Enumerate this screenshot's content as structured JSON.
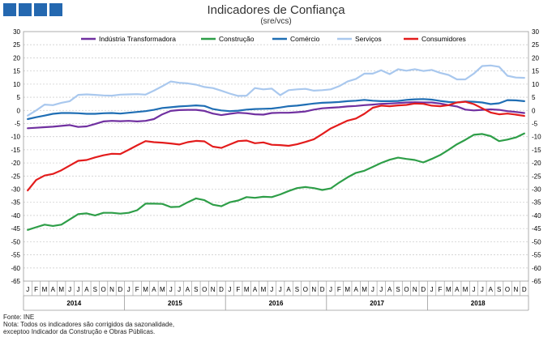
{
  "header": {
    "title": "Indicadores de Confiança",
    "subtitle": "(sre/vcs)"
  },
  "footer": {
    "source": "Fonte: INE",
    "note_line1": "Nota: Todos os indicadores são corrigidos da sazonalidade,",
    "note_line2": "exceptoo Indicador da Construção e Obras Públicas."
  },
  "chart_data": {
    "type": "line",
    "title": "Indicadores de Confiança",
    "subtitle": "(sre/vcs)",
    "ylim": [
      -65,
      30
    ],
    "ytick_step": 5,
    "grid": true,
    "legend_position": "top",
    "month_labels": [
      "J",
      "F",
      "M",
      "A",
      "M",
      "J",
      "J",
      "A",
      "S",
      "O",
      "N",
      "D"
    ],
    "years": [
      "2014",
      "2015",
      "2016",
      "2017",
      "2018"
    ],
    "series": [
      {
        "name": "Indústria Transformadora",
        "color": "#7030a0",
        "values": [
          -6.8,
          -6.6,
          -6.4,
          -6.2,
          -5.9,
          -5.6,
          -6.3,
          -6.1,
          -5.2,
          -4.2,
          -4.0,
          -4.1,
          -4.0,
          -4.2,
          -4.0,
          -3.3,
          -1.5,
          -0.2,
          0.1,
          0.2,
          0.2,
          -0.2,
          -1.2,
          -1.8,
          -1.3,
          -0.9,
          -1.1,
          -1.5,
          -1.6,
          -1.0,
          -0.9,
          -0.9,
          -0.7,
          -0.4,
          0.3,
          0.8,
          1.0,
          1.2,
          1.5,
          1.7,
          2.0,
          2.2,
          2.5,
          2.6,
          2.8,
          3.0,
          3.1,
          3.0,
          3.0,
          2.6,
          2.0,
          1.5,
          0.3,
          0.0,
          0.2,
          0.4,
          0.2,
          -0.3,
          -0.6,
          -1.0
        ]
      },
      {
        "name": "Construção",
        "color": "#2e9e48",
        "values": [
          -45.5,
          -44.5,
          -43.5,
          -44.0,
          -43.5,
          -41.5,
          -39.5,
          -39.2,
          -40.0,
          -39.0,
          -39.0,
          -39.3,
          -39.0,
          -38.0,
          -35.5,
          -35.5,
          -35.6,
          -36.8,
          -36.7,
          -35.0,
          -33.5,
          -34.2,
          -35.9,
          -36.5,
          -35.0,
          -34.3,
          -33.0,
          -33.3,
          -32.9,
          -33.0,
          -32.0,
          -30.7,
          -29.6,
          -29.2,
          -29.6,
          -30.3,
          -29.7,
          -27.5,
          -25.5,
          -23.8,
          -23.0,
          -21.5,
          -20.0,
          -18.8,
          -18.0,
          -18.5,
          -18.9,
          -19.8,
          -18.5,
          -17.0,
          -15.0,
          -12.9,
          -11.2,
          -9.3,
          -9.0,
          -9.8,
          -11.7,
          -11.1,
          -10.3,
          -8.8
        ]
      },
      {
        "name": "Comércio",
        "color": "#1f6eb4",
        "values": [
          -3.3,
          -2.6,
          -2.0,
          -1.3,
          -1.0,
          -1.0,
          -1.1,
          -1.3,
          -1.3,
          -1.1,
          -1.0,
          -1.2,
          -0.9,
          -0.6,
          -0.3,
          0.2,
          0.9,
          1.2,
          1.5,
          1.7,
          1.9,
          1.7,
          0.5,
          0.0,
          -0.3,
          -0.1,
          0.3,
          0.5,
          0.6,
          0.7,
          1.1,
          1.6,
          1.8,
          2.2,
          2.6,
          2.9,
          3.0,
          3.2,
          3.5,
          3.7,
          4.0,
          3.7,
          3.5,
          3.5,
          3.6,
          4.0,
          4.2,
          4.3,
          4.1,
          3.6,
          3.2,
          3.0,
          3.4,
          3.3,
          3.0,
          2.4,
          2.7,
          3.9,
          3.8,
          3.5
        ]
      },
      {
        "name": "Serviços",
        "color": "#a9c8ee",
        "values": [
          -2.0,
          0.0,
          2.2,
          2.0,
          2.9,
          3.5,
          5.9,
          6.1,
          5.9,
          5.7,
          5.6,
          6.0,
          6.1,
          6.2,
          6.0,
          7.5,
          9.2,
          11.0,
          10.5,
          10.3,
          9.8,
          8.9,
          8.5,
          7.5,
          6.4,
          5.5,
          5.6,
          8.5,
          8.0,
          8.3,
          5.8,
          7.7,
          8.0,
          8.2,
          7.5,
          7.7,
          8.0,
          9.2,
          11.0,
          12.0,
          14.0,
          14.0,
          15.3,
          13.8,
          15.7,
          15.1,
          15.7,
          15.0,
          15.4,
          14.3,
          13.5,
          11.8,
          11.8,
          14.0,
          16.9,
          17.1,
          16.6,
          13.2,
          12.5,
          12.4
        ]
      },
      {
        "name": "Consumidores",
        "color": "#e31c1c",
        "values": [
          -30.5,
          -26.5,
          -24.8,
          -24.2,
          -22.8,
          -21.0,
          -19.2,
          -18.9,
          -17.9,
          -17.1,
          -16.5,
          -16.6,
          -15.0,
          -13.3,
          -11.7,
          -12.1,
          -12.3,
          -12.6,
          -13.0,
          -12.1,
          -11.6,
          -11.8,
          -13.8,
          -14.3,
          -13.0,
          -11.7,
          -11.5,
          -12.5,
          -12.2,
          -13.1,
          -13.2,
          -13.5,
          -12.9,
          -12.0,
          -11.0,
          -9.0,
          -6.9,
          -5.4,
          -3.9,
          -3.1,
          -1.3,
          1.0,
          1.8,
          1.6,
          1.9,
          2.1,
          2.6,
          2.5,
          1.8,
          1.6,
          2.0,
          3.0,
          3.3,
          2.4,
          0.8,
          -0.8,
          -1.5,
          -1.2,
          -1.6,
          -2.1
        ]
      }
    ]
  }
}
